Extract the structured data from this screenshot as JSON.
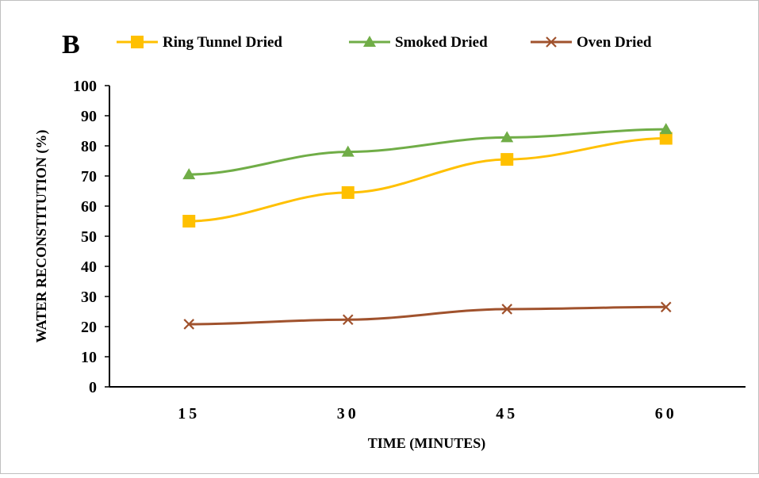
{
  "chart_data": {
    "type": "line",
    "panel_label": "B",
    "categories": [
      "15",
      "30",
      "45",
      "60"
    ],
    "x": [
      15,
      30,
      45,
      60
    ],
    "series": [
      {
        "name": "Ring Tunnel Dried",
        "values": [
          55.0,
          64.5,
          75.5,
          82.5
        ],
        "color": "#FFC000",
        "marker": "square"
      },
      {
        "name": "Smoked Dried",
        "values": [
          70.5,
          78.0,
          82.8,
          85.5
        ],
        "color": "#70AD47",
        "marker": "triangle"
      },
      {
        "name": "Oven Dried",
        "values": [
          20.8,
          22.3,
          25.8,
          26.5
        ],
        "color": "#A0522D",
        "marker": "x"
      }
    ],
    "title": "",
    "xlabel": "TIME (MINUTES)",
    "ylabel": "WATER RECONSTITUTION (%)",
    "ylim": [
      0,
      100
    ],
    "yticks": [
      0,
      10,
      20,
      30,
      40,
      50,
      60,
      70,
      80,
      90,
      100
    ],
    "grid": false,
    "legend_position": "top"
  }
}
